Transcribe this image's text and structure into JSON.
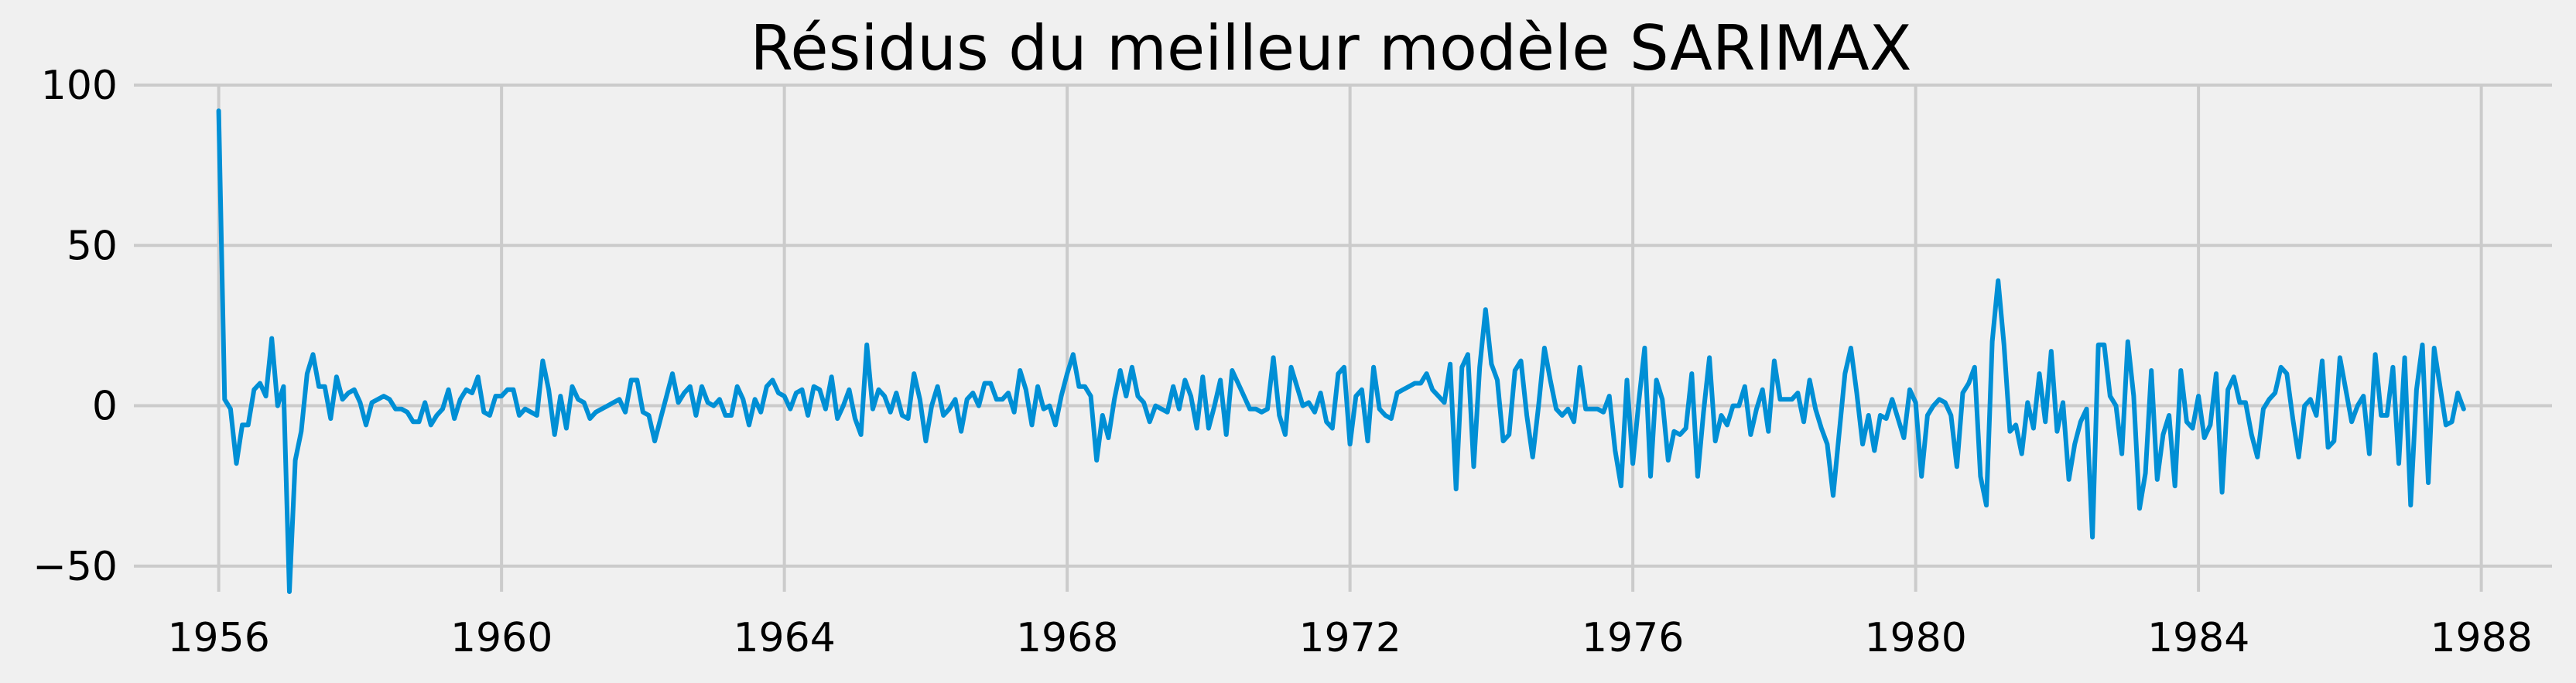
{
  "chart_data": {
    "type": "line",
    "title": "Résidus du meilleur modèle SARIMAX",
    "xlabel": "",
    "ylabel": "",
    "x_start": "1956-01",
    "frequency": "monthly",
    "xlim": [
      1954.8,
      1989.0
    ],
    "ylim": [
      -58,
      100
    ],
    "xticks": [
      1956,
      1960,
      1964,
      1968,
      1972,
      1976,
      1980,
      1984,
      1988
    ],
    "xtick_labels": [
      "1956",
      "1960",
      "1964",
      "1968",
      "1972",
      "1976",
      "1980",
      "1984",
      "1988"
    ],
    "yticks": [
      100,
      50,
      0,
      -50
    ],
    "ytick_labels": [
      "100",
      "50",
      "0",
      "−50"
    ],
    "grid": true,
    "colors": {
      "line": "#008fd5",
      "background": "#f0f0f0",
      "grid": "#cbcbcb"
    },
    "series": [
      {
        "values": [
          92,
          2,
          -1,
          -18,
          -6,
          -6,
          5,
          7,
          3,
          21,
          0,
          6,
          -58,
          -17,
          -8,
          10,
          16,
          6,
          6,
          -4,
          9,
          2,
          4,
          5,
          1,
          -6,
          1,
          2,
          3,
          2,
          -1,
          -1,
          -2,
          -5,
          -5,
          1,
          -6,
          -3,
          -1,
          5,
          -4,
          2,
          5,
          4,
          9,
          -2,
          -3,
          3,
          3,
          5,
          5,
          -3,
          -1,
          -2,
          -3,
          14,
          5,
          -9,
          3,
          -7,
          6,
          2,
          1,
          -4,
          -2,
          -1,
          0,
          1,
          2,
          -2,
          8,
          8,
          -2,
          -3,
          -11,
          -4,
          3,
          10,
          1,
          4,
          6,
          -3,
          6,
          1,
          0,
          2,
          -3,
          -3,
          6,
          2,
          -6,
          2,
          -2,
          6,
          8,
          4,
          3,
          -1,
          4,
          5,
          -3,
          6,
          5,
          -1,
          9,
          -4,
          0,
          5,
          -4,
          -9,
          19,
          -1,
          5,
          3,
          -2,
          4,
          -3,
          -4,
          10,
          2,
          -11,
          0,
          6,
          -3,
          -1,
          2,
          -8,
          2,
          4,
          0,
          7,
          7,
          2,
          2,
          4,
          -2,
          11,
          5,
          -6,
          6,
          -1,
          0,
          -6,
          3,
          10,
          16,
          6,
          6,
          3,
          -17,
          -3,
          -10,
          2,
          11,
          3,
          12,
          3,
          1,
          -5,
          0,
          -1,
          -2,
          6,
          -1,
          8,
          3,
          -7,
          9,
          -7,
          0,
          8,
          -9,
          11,
          7,
          3,
          -1,
          -1,
          -2,
          -1,
          15,
          -3,
          -9,
          12,
          6,
          0,
          1,
          -2,
          4,
          -5,
          -7,
          10,
          12,
          -12,
          3,
          5,
          -11,
          12,
          -1,
          -3,
          -4,
          4,
          5,
          6,
          7,
          7,
          10,
          5,
          3,
          1,
          13,
          -26,
          12,
          16,
          -19,
          12,
          30,
          13,
          8,
          -11,
          -9,
          11,
          14,
          -3,
          -16,
          0,
          18,
          8,
          -1,
          -3,
          -1,
          -5,
          12,
          -1,
          -1,
          -1,
          -2,
          3,
          -14,
          -25,
          8,
          -18,
          1,
          18,
          -22,
          8,
          2,
          -17,
          -8,
          -9,
          -7,
          10,
          -22,
          -2,
          15,
          -11,
          -3,
          -6,
          0,
          0,
          6,
          -9,
          -1,
          5,
          -8,
          14,
          2,
          2,
          2,
          4,
          -5,
          8,
          -1,
          -7,
          -12,
          -28,
          -9,
          10,
          18,
          4,
          -12,
          -3,
          -14,
          -3,
          -4,
          2,
          -4,
          -10,
          5,
          1,
          -22,
          -3,
          0,
          2,
          1,
          -3,
          -19,
          4,
          7,
          12,
          -22,
          -31,
          20,
          39,
          19,
          -8,
          -6,
          -15,
          1,
          -7,
          10,
          -5,
          17,
          -8,
          1,
          -23,
          -12,
          -5,
          -1,
          -41,
          19,
          19,
          3,
          0,
          -15,
          20,
          3,
          -32,
          -21,
          11,
          -23,
          -9,
          -3,
          -25,
          11,
          -5,
          -7,
          3,
          -10,
          -6,
          10,
          -27,
          5,
          9,
          1,
          1,
          -9,
          -16,
          -1,
          2,
          4,
          12,
          10,
          -4,
          -16,
          0,
          2,
          -3,
          14,
          -13,
          -11,
          15,
          5,
          -5,
          0,
          3,
          -15,
          16,
          -3,
          -3,
          12,
          -18,
          15,
          -31,
          5,
          19,
          -24,
          18,
          6,
          -6,
          -5,
          4,
          -1
        ]
      }
    ]
  }
}
